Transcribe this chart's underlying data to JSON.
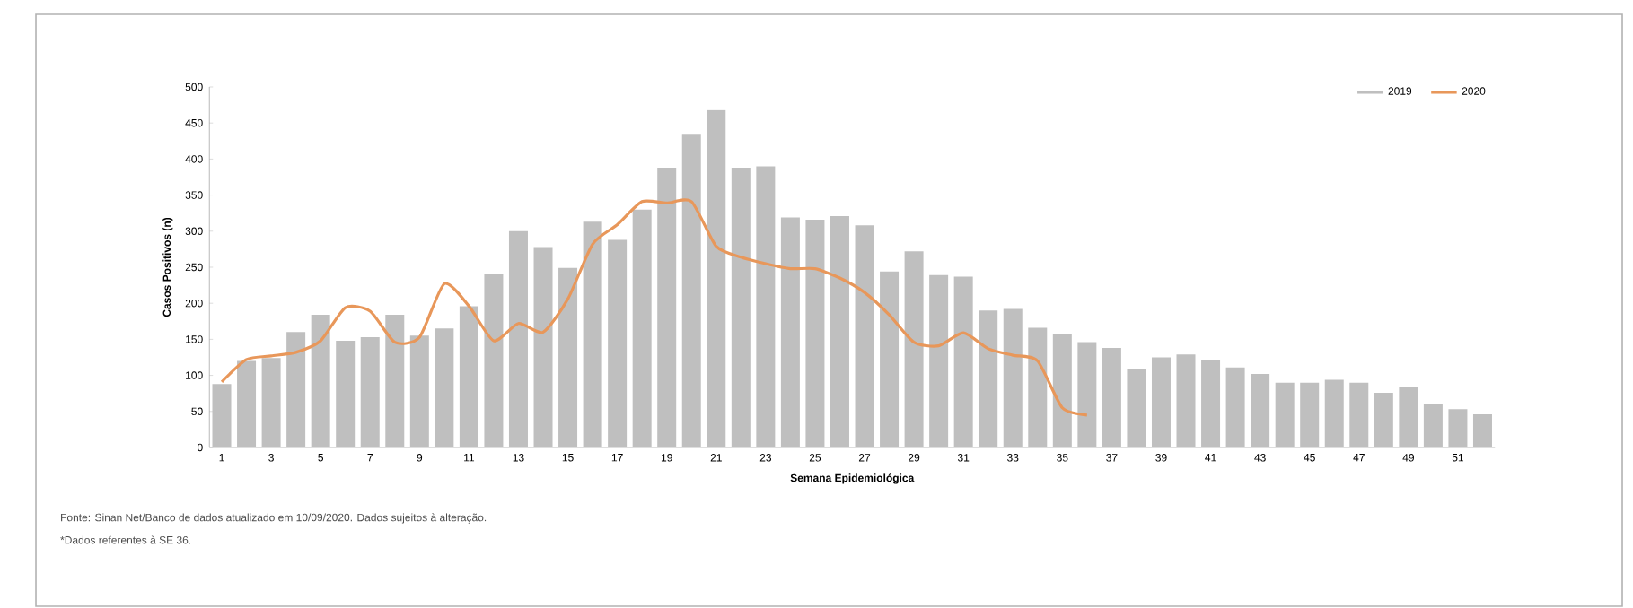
{
  "chart_data": {
    "type": "bar",
    "xlabel": "Semana Epidemiológica",
    "ylabel": "Casos Positivos (n)",
    "categories": [
      "1",
      null,
      "3",
      null,
      "5",
      null,
      "7",
      null,
      "9",
      null,
      "11",
      null,
      "13",
      null,
      "15",
      null,
      "17",
      null,
      "19",
      null,
      "21",
      null,
      "23",
      null,
      "25",
      null,
      "27",
      null,
      "29",
      null,
      "31",
      null,
      "33",
      null,
      "35",
      null,
      "37",
      null,
      "39",
      null,
      "41",
      null,
      "43",
      null,
      "45",
      null,
      "47",
      null,
      "49",
      null,
      "51",
      null
    ],
    "series": [
      {
        "name": "2019",
        "color": "#bfbfbf",
        "values": [
          88,
          120,
          124,
          160,
          184,
          148,
          153,
          184,
          155,
          165,
          196,
          240,
          300,
          278,
          249,
          313,
          288,
          330,
          388,
          435,
          468,
          388,
          390,
          319,
          316,
          321,
          308,
          244,
          272,
          239,
          237,
          190,
          192,
          166,
          157,
          146,
          138,
          109,
          125,
          129,
          121,
          111,
          102,
          90,
          90,
          94,
          90,
          76,
          84,
          61,
          53,
          46
        ]
      },
      {
        "name": "2020",
        "type": "line",
        "color": "#e8975a",
        "values": [
          91,
          122,
          127,
          132,
          148,
          194,
          189,
          146,
          153,
          227,
          196,
          148,
          172,
          160,
          206,
          282,
          309,
          341,
          339,
          341,
          279,
          264,
          255,
          248,
          248,
          235,
          215,
          184,
          146,
          141,
          159,
          137,
          128,
          120,
          55,
          45,
          null,
          null,
          null,
          null,
          null,
          null,
          null,
          null,
          null,
          null,
          null,
          null,
          null,
          null,
          null,
          null
        ]
      }
    ],
    "ylim": [
      0,
      500
    ],
    "yticks": [
      0,
      50,
      100,
      150,
      200,
      250,
      300,
      350,
      400,
      450,
      500
    ],
    "legend": "top right",
    "annotations": [
      "Fonte: Sinan Net/Banco de dados atualizado em 10/09/2020. Dados sujeitos à alteração.",
      "*Dados referentes à SE 36."
    ]
  }
}
